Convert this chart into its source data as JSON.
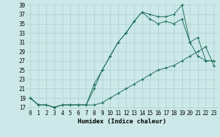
{
  "xlabel": "Humidex (Indice chaleur)",
  "bg_color": "#cce8e8",
  "grid_color": "#aacfcf",
  "line_color": "#1a6b5a",
  "xlim": [
    -0.5,
    23.5
  ],
  "ylim": [
    16.5,
    39.5
  ],
  "xticks": [
    0,
    1,
    2,
    3,
    4,
    5,
    6,
    7,
    8,
    9,
    10,
    11,
    12,
    13,
    14,
    15,
    16,
    17,
    18,
    19,
    20,
    21,
    22,
    23
  ],
  "yticks": [
    17,
    19,
    21,
    23,
    25,
    27,
    29,
    31,
    33,
    35,
    37,
    39
  ],
  "series1_x": [
    0,
    1,
    2,
    3,
    4,
    5,
    6,
    7,
    8,
    9,
    10,
    11,
    12,
    13,
    14,
    15,
    16,
    17,
    18,
    19,
    20,
    21,
    22,
    23
  ],
  "series1_y": [
    19,
    17.5,
    17.5,
    17,
    17.5,
    17.5,
    17.5,
    17.5,
    17.5,
    18,
    19,
    20,
    21,
    22,
    23,
    24,
    25,
    25.5,
    26,
    27,
    28,
    29,
    30,
    26
  ],
  "series2_x": [
    0,
    1,
    2,
    3,
    4,
    5,
    6,
    7,
    8,
    9,
    10,
    11,
    12,
    13,
    14,
    15,
    16,
    17,
    18,
    19,
    20,
    21,
    22,
    23
  ],
  "series2_y": [
    19,
    17.5,
    17.5,
    17,
    17.5,
    17.5,
    17.5,
    17.5,
    21,
    25,
    28,
    31,
    33,
    35.5,
    37.5,
    36,
    35,
    35.5,
    35,
    36,
    31,
    28,
    27,
    27
  ],
  "series3_x": [
    0,
    1,
    2,
    3,
    4,
    5,
    6,
    7,
    8,
    9,
    10,
    11,
    12,
    13,
    14,
    15,
    16,
    17,
    18,
    19,
    20,
    21,
    22,
    23
  ],
  "series3_y": [
    19,
    17.5,
    17.5,
    17,
    17.5,
    17.5,
    17.5,
    17.5,
    22,
    25,
    28,
    31,
    33,
    35.5,
    37.5,
    37,
    36.5,
    36.5,
    37,
    39,
    31,
    32,
    27,
    27
  ],
  "xlabel_fontsize": 6.5,
  "tick_fontsize": 5.5
}
